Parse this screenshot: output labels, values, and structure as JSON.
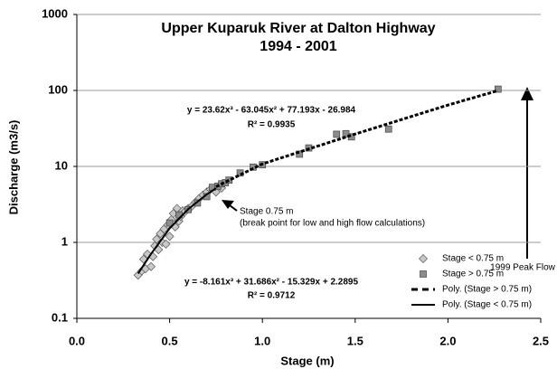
{
  "chart_data": {
    "type": "scatter",
    "title": "Upper Kuparuk River at Dalton Highway",
    "subtitle": "1994 - 2001",
    "x_label": "Stage (m)",
    "y_label": "Discharge (m3/s)",
    "log_y": true,
    "grid": "y",
    "legend": "lower right",
    "xlim": [
      0,
      2.5
    ],
    "xticks": [
      {
        "value": 0,
        "label": "0.0"
      },
      {
        "value": 0.5,
        "label": "0.5"
      },
      {
        "value": 1,
        "label": "1.0"
      },
      {
        "value": 1.5,
        "label": "1.5"
      },
      {
        "value": 2,
        "label": "2.0"
      },
      {
        "value": 2.5,
        "label": "2.5"
      }
    ],
    "ylim": [
      0.1,
      1000
    ],
    "yticks": [
      0.1,
      1,
      10,
      100,
      1000
    ],
    "series": [
      {
        "name": "Stage < 0.75 m",
        "marker": "diamond",
        "color": "#c8c8c8",
        "x": [
          0.33,
          0.35,
          0.37,
          0.36,
          0.38,
          0.4,
          0.41,
          0.42,
          0.43,
          0.44,
          0.45,
          0.46,
          0.47,
          0.48,
          0.49,
          0.5,
          0.51,
          0.52,
          0.53,
          0.54,
          0.55,
          0.56,
          0.57,
          0.58,
          0.6,
          0.62,
          0.64,
          0.66,
          0.68,
          0.7,
          0.72,
          0.75,
          0.78
        ],
        "values": [
          0.37,
          0.42,
          0.45,
          0.6,
          0.7,
          0.48,
          0.65,
          0.9,
          1.1,
          0.8,
          1.3,
          1.0,
          1.5,
          0.95,
          1.7,
          1.2,
          2.0,
          2.4,
          1.6,
          2.8,
          1.9,
          2.2,
          2.6,
          2.5,
          2.8,
          3.0,
          3.4,
          3.8,
          4.2,
          4.6,
          5.0,
          4.6,
          5.2
        ]
      },
      {
        "name": "Stage > 0.75 m",
        "marker": "square",
        "color": "#8c8c8c",
        "x": [
          0.5,
          0.55,
          0.6,
          0.65,
          0.7,
          0.73,
          0.76,
          0.78,
          0.8,
          0.82,
          0.88,
          0.95,
          1.0,
          1.2,
          1.25,
          1.4,
          1.45,
          1.48,
          1.68,
          2.27
        ],
        "values": [
          1.8,
          2.3,
          2.7,
          3.3,
          4.0,
          5.3,
          5.5,
          5.9,
          6.1,
          6.6,
          8.2,
          9.8,
          10.5,
          14.5,
          17.5,
          26.5,
          27,
          24.5,
          31,
          104
        ]
      },
      {
        "name": "Poly. (Stage > 0.75 m)",
        "line_style": "dashed",
        "color": "#000000",
        "x": [
          0.75,
          1.0,
          1.5,
          2.0,
          2.27
        ],
        "values": [
          5.41,
          10.78,
          26.68,
          64.19,
          99.6
        ]
      },
      {
        "name": "Poly. (Stage < 0.75 m)",
        "line_style": "solid",
        "color": "#000000",
        "x": [
          0.33,
          0.4,
          0.5,
          0.6,
          0.7,
          0.75
        ],
        "values": [
          0.389,
          0.706,
          1.526,
          2.737,
          4.287,
          5.173
        ]
      }
    ],
    "annotations": [
      {
        "text": "y = 23.62x³ - 63.045x² + 77.193x - 26.984"
      },
      {
        "text": "R² = 0.9935"
      },
      {
        "text": "y = -8.161x³ + 31.686x² - 15.329x + 2.2895"
      },
      {
        "text": "R² = 0.9712"
      },
      {
        "text": "1999 Peak Flow"
      },
      {
        "text": "Stage 0.75 m"
      },
      {
        "text": "(break point for low and high flow calculations)"
      }
    ]
  }
}
